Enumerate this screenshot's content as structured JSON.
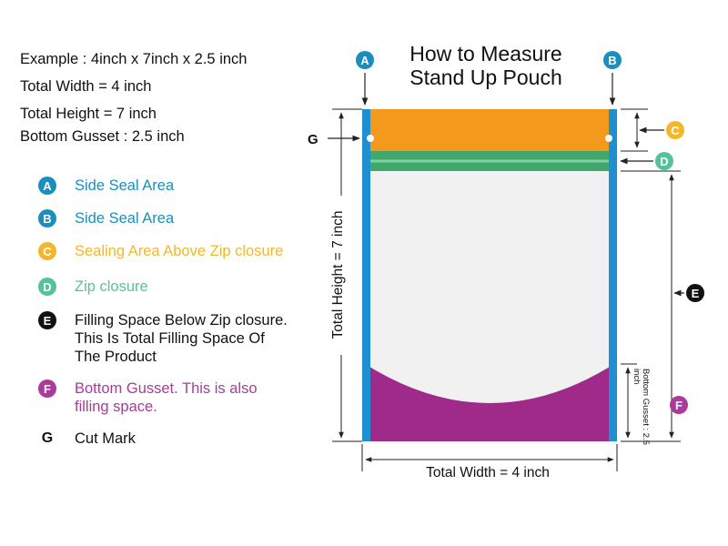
{
  "title": [
    "How to Measure",
    "Stand Up Pouch"
  ],
  "specs": [
    "Example : 4inch x 7inch x 2.5 inch",
    "Total Width = 4 inch",
    "Total Height = 7 inch",
    "Bottom Gusset : 2.5 inch"
  ],
  "legend": [
    {
      "mark": "A",
      "text": "Side Seal Area",
      "color": "#1a8fbf"
    },
    {
      "mark": "B",
      "text": "Side Seal Area",
      "color": "#1a8fbf"
    },
    {
      "mark": "C",
      "text": "Sealing Area Above Zip closure",
      "color": "#f3b729"
    },
    {
      "mark": "D",
      "text": "Zip closure",
      "color": "#55c39a"
    },
    {
      "mark": "E",
      "text": "Filling Space Below Zip closure.\nThis Is Total Filling Space Of\nThe Product",
      "color": "#111111"
    },
    {
      "mark": "F",
      "text": "Bottom Gusset. This is also\nfilling space.",
      "color": "#a83c98"
    },
    {
      "mark": "G",
      "text": "Cut Mark",
      "color": "#111111"
    }
  ],
  "diagram": {
    "total_height_label": "Total Height = 7 inch",
    "total_width_label": "Total Width = 4 inch",
    "gusset_label": "Bottom Gusset : 2.5 inch",
    "cut_mark": "G"
  },
  "colors": {
    "side_seal": "#1e8fd0",
    "top_seal": "#f39a1c",
    "zip": "#3fa86a",
    "zip_line": "#54c08a",
    "gusset": "#a02a8a",
    "body": "#f1f1f1"
  }
}
